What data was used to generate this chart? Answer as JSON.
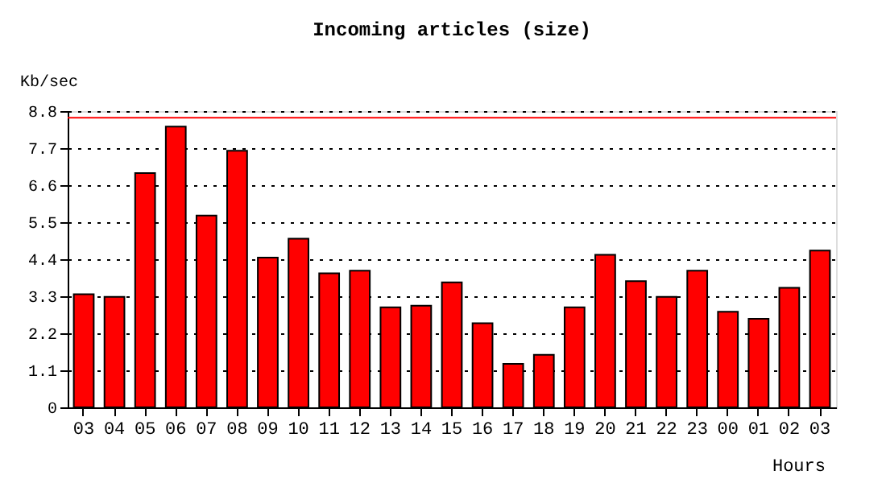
{
  "chart_data": {
    "type": "bar",
    "title": "Incoming articles (size)",
    "ylabel": "Kb/sec",
    "xlabel": "Hours",
    "categories": [
      "03",
      "04",
      "05",
      "06",
      "07",
      "08",
      "09",
      "10",
      "11",
      "12",
      "13",
      "14",
      "15",
      "16",
      "17",
      "18",
      "19",
      "20",
      "21",
      "22",
      "23",
      "00",
      "01",
      "02",
      "03"
    ],
    "values": [
      3.36,
      3.28,
      6.96,
      8.34,
      5.7,
      7.62,
      4.45,
      5.01,
      3.98,
      4.06,
      2.97,
      3.02,
      3.71,
      2.5,
      1.29,
      1.56,
      2.97,
      4.53,
      3.75,
      3.28,
      4.06,
      2.84,
      2.63,
      3.55,
      4.66
    ],
    "color": "#ff0000",
    "ylim": [
      0,
      8.8
    ],
    "yticks": [
      0,
      1.1,
      2.2,
      3.3,
      4.4,
      5.5,
      6.6,
      7.7,
      8.8
    ],
    "grid": "y",
    "ref_lines": [
      {
        "axis": "y",
        "value": 8.6,
        "color": "#ff0000"
      }
    ]
  }
}
